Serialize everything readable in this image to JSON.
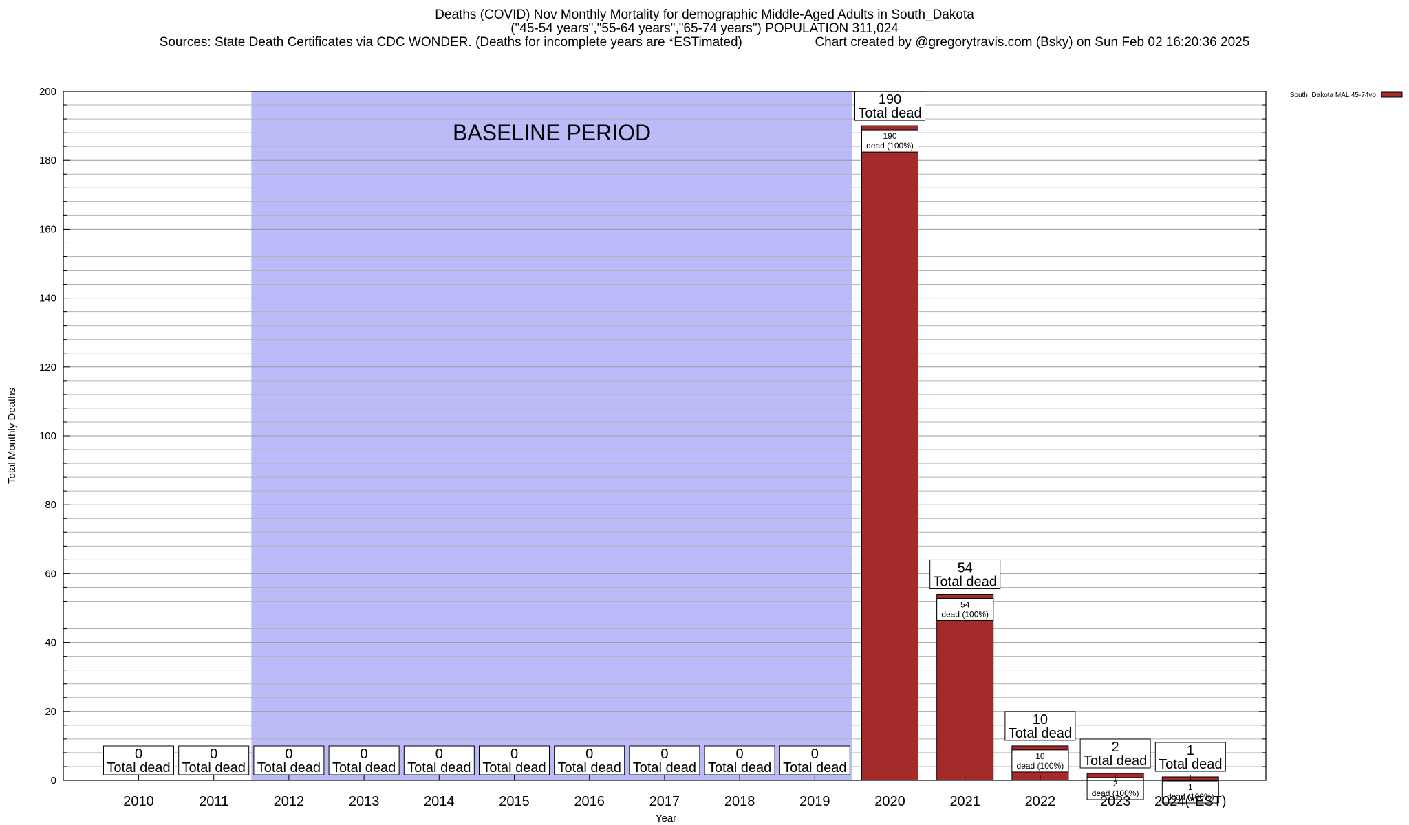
{
  "header": {
    "title_line_1": "Deaths (COVID) Nov Monthly Mortality for demographic Middle-Aged Adults in South_Dakota",
    "title_line_2": "(\"45-54 years\",\"55-64 years\",\"65-74 years\") POPULATION 311,024",
    "sources_line": "Sources: State Death Certificates via CDC WONDER. (Deaths for incomplete years are *ESTimated)                    Chart created by @gregorytravis.com (Bsky) on Sun Feb 02 16:20:36 2025"
  },
  "chart_data": {
    "type": "bar",
    "xlabel": "Year",
    "ylabel": "Total Monthly Deaths",
    "ylim": [
      0,
      200
    ],
    "yticks": [
      0,
      20,
      40,
      60,
      80,
      100,
      120,
      140,
      160,
      180,
      200
    ],
    "categories": [
      "2010",
      "2011",
      "2012",
      "2013",
      "2014",
      "2015",
      "2016",
      "2017",
      "2018",
      "2019",
      "2020",
      "2021",
      "2022",
      "2023",
      "2024(*EST)"
    ],
    "series": [
      {
        "name": "South_Dakota MAL 45-74yo",
        "color": "#a52a2a",
        "values": [
          0,
          0,
          0,
          0,
          0,
          0,
          0,
          0,
          0,
          0,
          190,
          54,
          10,
          2,
          1
        ]
      }
    ],
    "total_label": "Total dead",
    "inner_label_suffix": "dead (100%)",
    "baseline": {
      "label": "BASELINE PERIOD",
      "from": "2012",
      "to": "2019",
      "color": "#bbbbf9"
    },
    "legend": {
      "position": "top-right",
      "entry": "South_Dakota MAL 45-74yo"
    },
    "grid": true
  }
}
